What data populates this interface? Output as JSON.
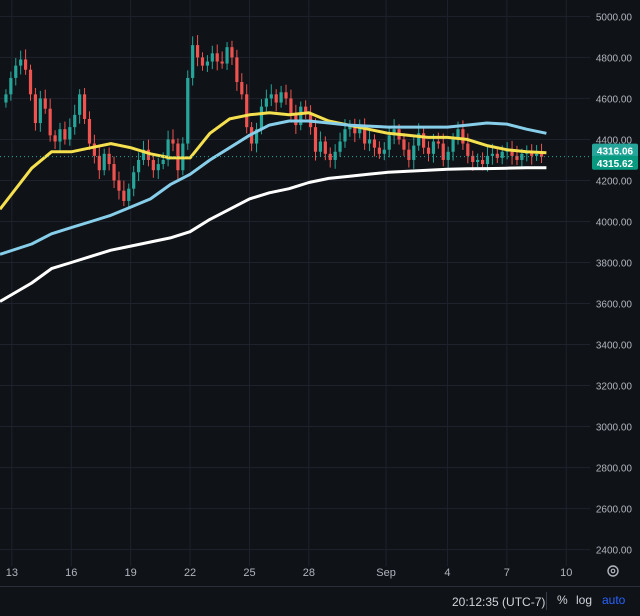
{
  "chart_data": {
    "type": "candlestick",
    "y_axis": {
      "position": "right",
      "ticks": [
        5000,
        4800,
        4600,
        4400,
        4200,
        4000,
        3800,
        3600,
        3400,
        3200,
        3000,
        2800,
        2600,
        2400
      ],
      "tick_labels": [
        "5000.00",
        "4800.00",
        "4600.00",
        "4400.00",
        "4200.00",
        "4000.00",
        "3800.00",
        "3600.00",
        "3400.00",
        "3200.00",
        "3000.00",
        "2800.00",
        "2600.00",
        "2400.00"
      ],
      "range": [
        2320,
        5080
      ]
    },
    "x_axis": {
      "ticks": [
        "13",
        "16",
        "19",
        "22",
        "25",
        "28",
        "Sep",
        "4",
        "7",
        "10"
      ],
      "tick_days": [
        0,
        3,
        6,
        9,
        12,
        15,
        18.9,
        22,
        25,
        28
      ],
      "range": [
        -0.6,
        29.2
      ]
    },
    "price_labels": [
      {
        "value": 4316.06,
        "text": "4316.06",
        "color": "#26a69a"
      },
      {
        "value": 4315.62,
        "text": "4315.62",
        "color": "#089981"
      }
    ],
    "current_price": 4316,
    "candle_closes": [
      4620,
      4700,
      4760,
      4790,
      4740,
      4620,
      4480,
      4600,
      4550,
      4420,
      4390,
      4450,
      4400,
      4460,
      4520,
      4620,
      4500,
      4380,
      4320,
      4250,
      4330,
      4280,
      4200,
      4150,
      4100,
      4160,
      4240,
      4300,
      4350,
      4300,
      4250,
      4280,
      4300,
      4400,
      4380,
      4250,
      4380,
      4700,
      4860,
      4800,
      4760,
      4780,
      4820,
      4780,
      4770,
      4850,
      4800,
      4680,
      4620,
      4460,
      4380,
      4450,
      4560,
      4600,
      4620,
      4580,
      4630,
      4600,
      4520,
      4470,
      4560,
      4530,
      4460,
      4340,
      4390,
      4330,
      4300,
      4340,
      4390,
      4450,
      4470,
      4430,
      4460,
      4380,
      4400,
      4360,
      4330,
      4350,
      4420,
      4450,
      4400,
      4350,
      4300,
      4370,
      4430,
      4360,
      4330,
      4390,
      4380,
      4300,
      4340,
      4400,
      4450,
      4380,
      4320,
      4290,
      4300,
      4280,
      4320,
      4330,
      4310,
      4340,
      4350,
      4320,
      4300,
      4330,
      4340,
      4320,
      4330,
      4316
    ],
    "series": [
      {
        "color": "#f5e04f",
        "values": [
          [
            -0.6,
            4060
          ],
          [
            1,
            4260
          ],
          [
            2,
            4340
          ],
          [
            3,
            4340
          ],
          [
            4,
            4360
          ],
          [
            5,
            4380
          ],
          [
            6,
            4360
          ],
          [
            7,
            4330
          ],
          [
            8,
            4310
          ],
          [
            9,
            4310
          ],
          [
            10,
            4430
          ],
          [
            11,
            4500
          ],
          [
            12,
            4520
          ],
          [
            13,
            4530
          ],
          [
            14,
            4520
          ],
          [
            15,
            4530
          ],
          [
            16,
            4490
          ],
          [
            17,
            4470
          ],
          [
            18,
            4450
          ],
          [
            19,
            4430
          ],
          [
            20,
            4420
          ],
          [
            21,
            4410
          ],
          [
            22,
            4410
          ],
          [
            23,
            4400
          ],
          [
            24,
            4370
          ],
          [
            25,
            4350
          ],
          [
            26,
            4340
          ],
          [
            27,
            4335
          ]
        ]
      },
      {
        "color": "#87ceeb",
        "values": [
          [
            -0.6,
            3840
          ],
          [
            1,
            3890
          ],
          [
            2,
            3940
          ],
          [
            3,
            3970
          ],
          [
            4,
            4000
          ],
          [
            5,
            4030
          ],
          [
            6,
            4070
          ],
          [
            7,
            4110
          ],
          [
            8,
            4180
          ],
          [
            9,
            4230
          ],
          [
            10,
            4300
          ],
          [
            11,
            4360
          ],
          [
            12,
            4420
          ],
          [
            13,
            4470
          ],
          [
            14,
            4490
          ],
          [
            15,
            4490
          ],
          [
            16,
            4480
          ],
          [
            17,
            4470
          ],
          [
            18,
            4465
          ],
          [
            19,
            4460
          ],
          [
            20,
            4460
          ],
          [
            21,
            4460
          ],
          [
            22,
            4460
          ],
          [
            23,
            4470
          ],
          [
            24,
            4480
          ],
          [
            25,
            4475
          ],
          [
            26,
            4450
          ],
          [
            27,
            4430
          ]
        ]
      },
      {
        "color": "#ffffff",
        "values": [
          [
            -0.6,
            3610
          ],
          [
            1,
            3700
          ],
          [
            2,
            3770
          ],
          [
            3,
            3800
          ],
          [
            4,
            3830
          ],
          [
            5,
            3860
          ],
          [
            6,
            3880
          ],
          [
            7,
            3900
          ],
          [
            8,
            3920
          ],
          [
            9,
            3950
          ],
          [
            10,
            4010
          ],
          [
            11,
            4060
          ],
          [
            12,
            4110
          ],
          [
            13,
            4140
          ],
          [
            14,
            4160
          ],
          [
            15,
            4190
          ],
          [
            16,
            4210
          ],
          [
            17,
            4220
          ],
          [
            18,
            4230
          ],
          [
            19,
            4240
          ],
          [
            20,
            4245
          ],
          [
            21,
            4250
          ],
          [
            22,
            4255
          ],
          [
            23,
            4257
          ],
          [
            24,
            4258
          ],
          [
            25,
            4260
          ],
          [
            26,
            4262
          ],
          [
            27,
            4262
          ]
        ]
      }
    ]
  },
  "footer": {
    "time": "20:12:35 (UTC-7)",
    "percent": "%",
    "log": "log",
    "auto": "auto"
  }
}
